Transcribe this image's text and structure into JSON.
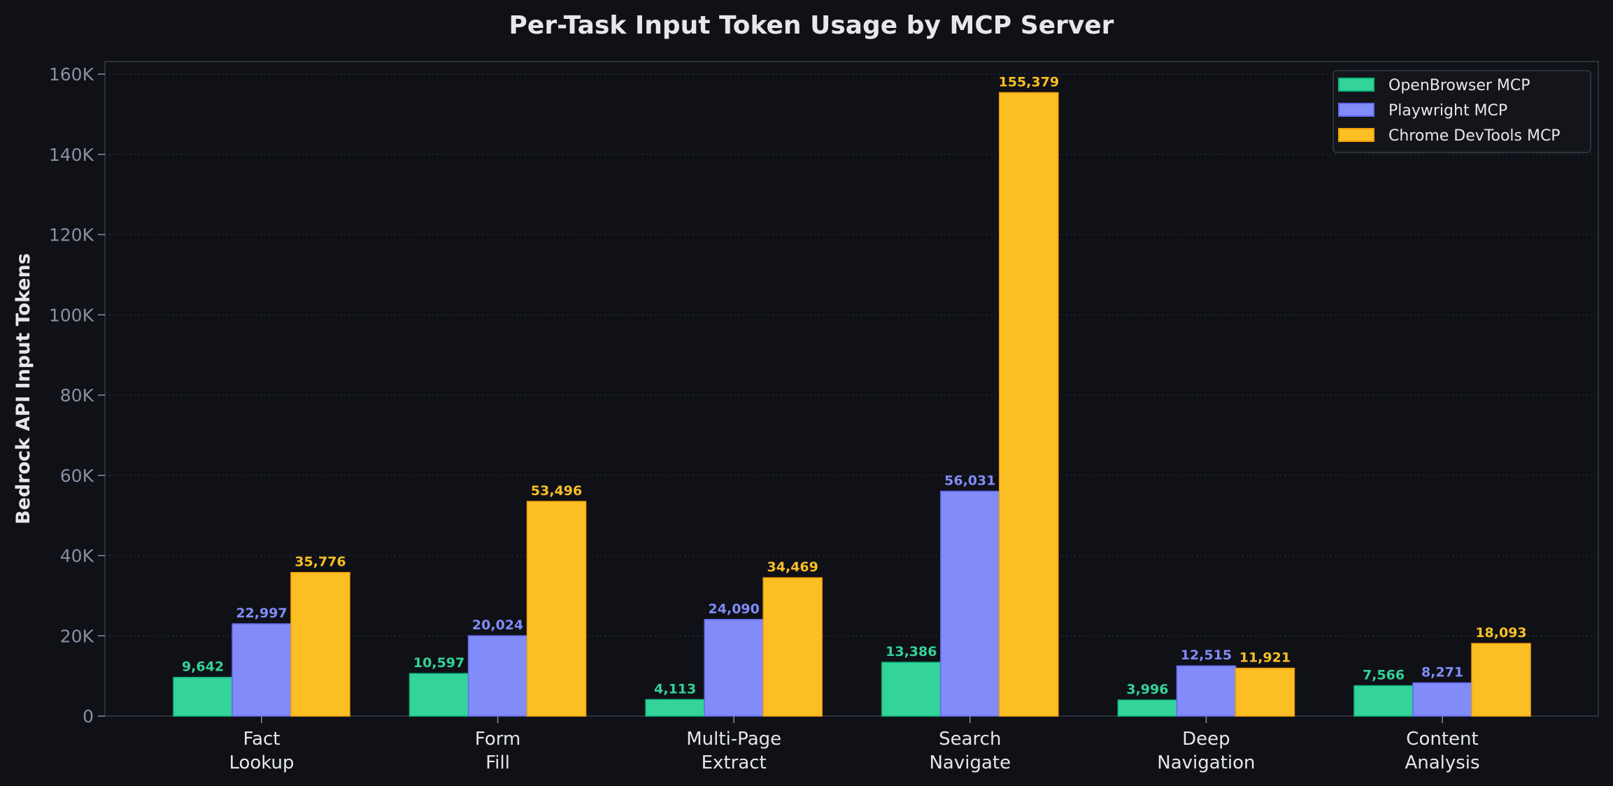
{
  "chart_data": {
    "type": "bar",
    "title": "Per-Task Input Token Usage by MCP Server",
    "xlabel": "",
    "ylabel": "Bedrock API Input Tokens",
    "ylim": [
      0,
      163000
    ],
    "yticks": [
      0,
      20000,
      40000,
      60000,
      80000,
      100000,
      120000,
      140000,
      160000
    ],
    "ytick_labels": [
      "0",
      "20K",
      "40K",
      "60K",
      "80K",
      "100K",
      "120K",
      "140K",
      "160K"
    ],
    "grid": true,
    "legend_position": "top-right",
    "categories": [
      [
        "Fact",
        "Lookup"
      ],
      [
        "Form",
        "Fill"
      ],
      [
        "Multi-Page",
        "Extract"
      ],
      [
        "Search",
        "Navigate"
      ],
      [
        "Deep",
        "Navigation"
      ],
      [
        "Content",
        "Analysis"
      ]
    ],
    "series": [
      {
        "name": "OpenBrowser MCP",
        "color": "#34d399",
        "edge": "#10b981",
        "values": [
          9642,
          10597,
          4113,
          13386,
          3996,
          7566
        ],
        "labels": [
          "9,642",
          "10,597",
          "4,113",
          "13,386",
          "3,996",
          "7,566"
        ]
      },
      {
        "name": "Playwright MCP",
        "color": "#818cf8",
        "edge": "#6366f1",
        "values": [
          22997,
          20024,
          24090,
          56031,
          12515,
          8271
        ],
        "labels": [
          "22,997",
          "20,024",
          "24,090",
          "56,031",
          "12,515",
          "8,271"
        ]
      },
      {
        "name": "Chrome DevTools MCP",
        "color": "#fbbf24",
        "edge": "#f59e0b",
        "values": [
          35776,
          53496,
          34469,
          155379,
          11921,
          18093
        ],
        "labels": [
          "35,776",
          "53,496",
          "34,469",
          "155,379",
          "11,921",
          "18,093"
        ]
      }
    ]
  }
}
